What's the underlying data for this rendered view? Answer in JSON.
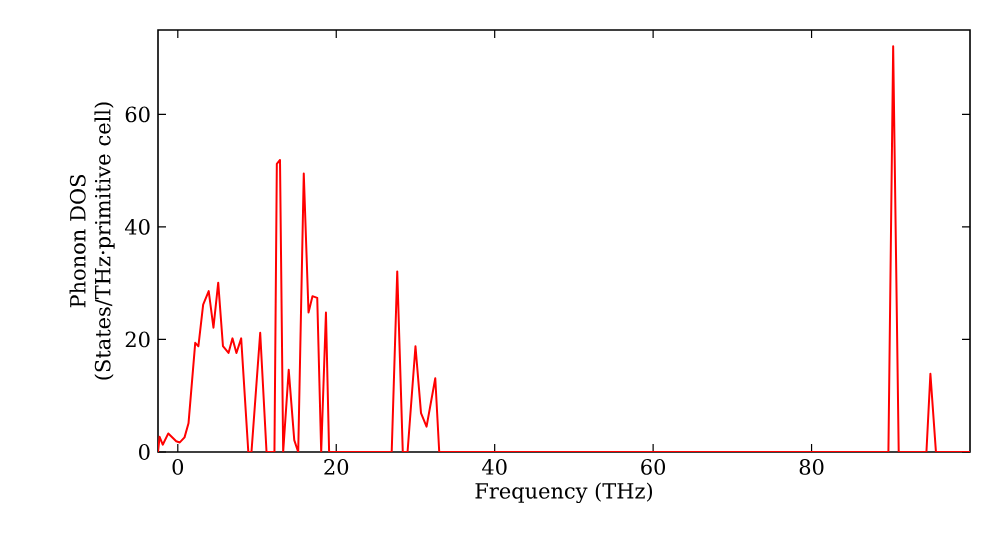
{
  "chart_data": {
    "type": "line",
    "xlabel": "Frequency (THz)",
    "ylabel": "Phonon DOS (States/THz·primitive cell)",
    "xlim": [
      -2.5,
      100
    ],
    "ylim": [
      0,
      75
    ],
    "xticks": [
      0,
      20,
      40,
      60,
      80
    ],
    "yticks": [
      0,
      20,
      40,
      60
    ],
    "color": "#ff0000",
    "marker": "none",
    "x": [
      -2.5,
      -2.3,
      -1.9,
      -1.2,
      -0.2,
      0.25,
      0.85,
      1.35,
      2.2,
      2.6,
      3.2,
      3.9,
      4.5,
      5.1,
      5.7,
      6.4,
      6.9,
      7.4,
      8.0,
      8.9,
      9.3,
      10.4,
      11.2,
      12.2,
      12.5,
      12.9,
      13.3,
      14.0,
      14.7,
      15.2,
      15.9,
      16.5,
      17.0,
      17.6,
      18.1,
      18.7,
      19.1,
      27.0,
      27.7,
      28.4,
      29.0,
      30.0,
      30.7,
      31.4,
      32.5,
      33.0,
      89.7,
      90.3,
      91.0,
      94.5,
      95.0,
      95.7,
      100
    ],
    "values": [
      0,
      2.7,
      1.3,
      3.3,
      1.9,
      1.7,
      2.6,
      5.1,
      19.4,
      18.8,
      26.2,
      28.6,
      22.1,
      30.1,
      18.8,
      17.6,
      20.2,
      17.6,
      20.2,
      0,
      0,
      21.2,
      0,
      0,
      51.2,
      51.9,
      0,
      14.6,
      2.1,
      0,
      49.5,
      24.8,
      27.7,
      27.4,
      0,
      24.8,
      0,
      0,
      32.1,
      0,
      0,
      18.8,
      6.9,
      4.5,
      13.1,
      0,
      0,
      72.1,
      0,
      0,
      13.9,
      0,
      0
    ]
  }
}
